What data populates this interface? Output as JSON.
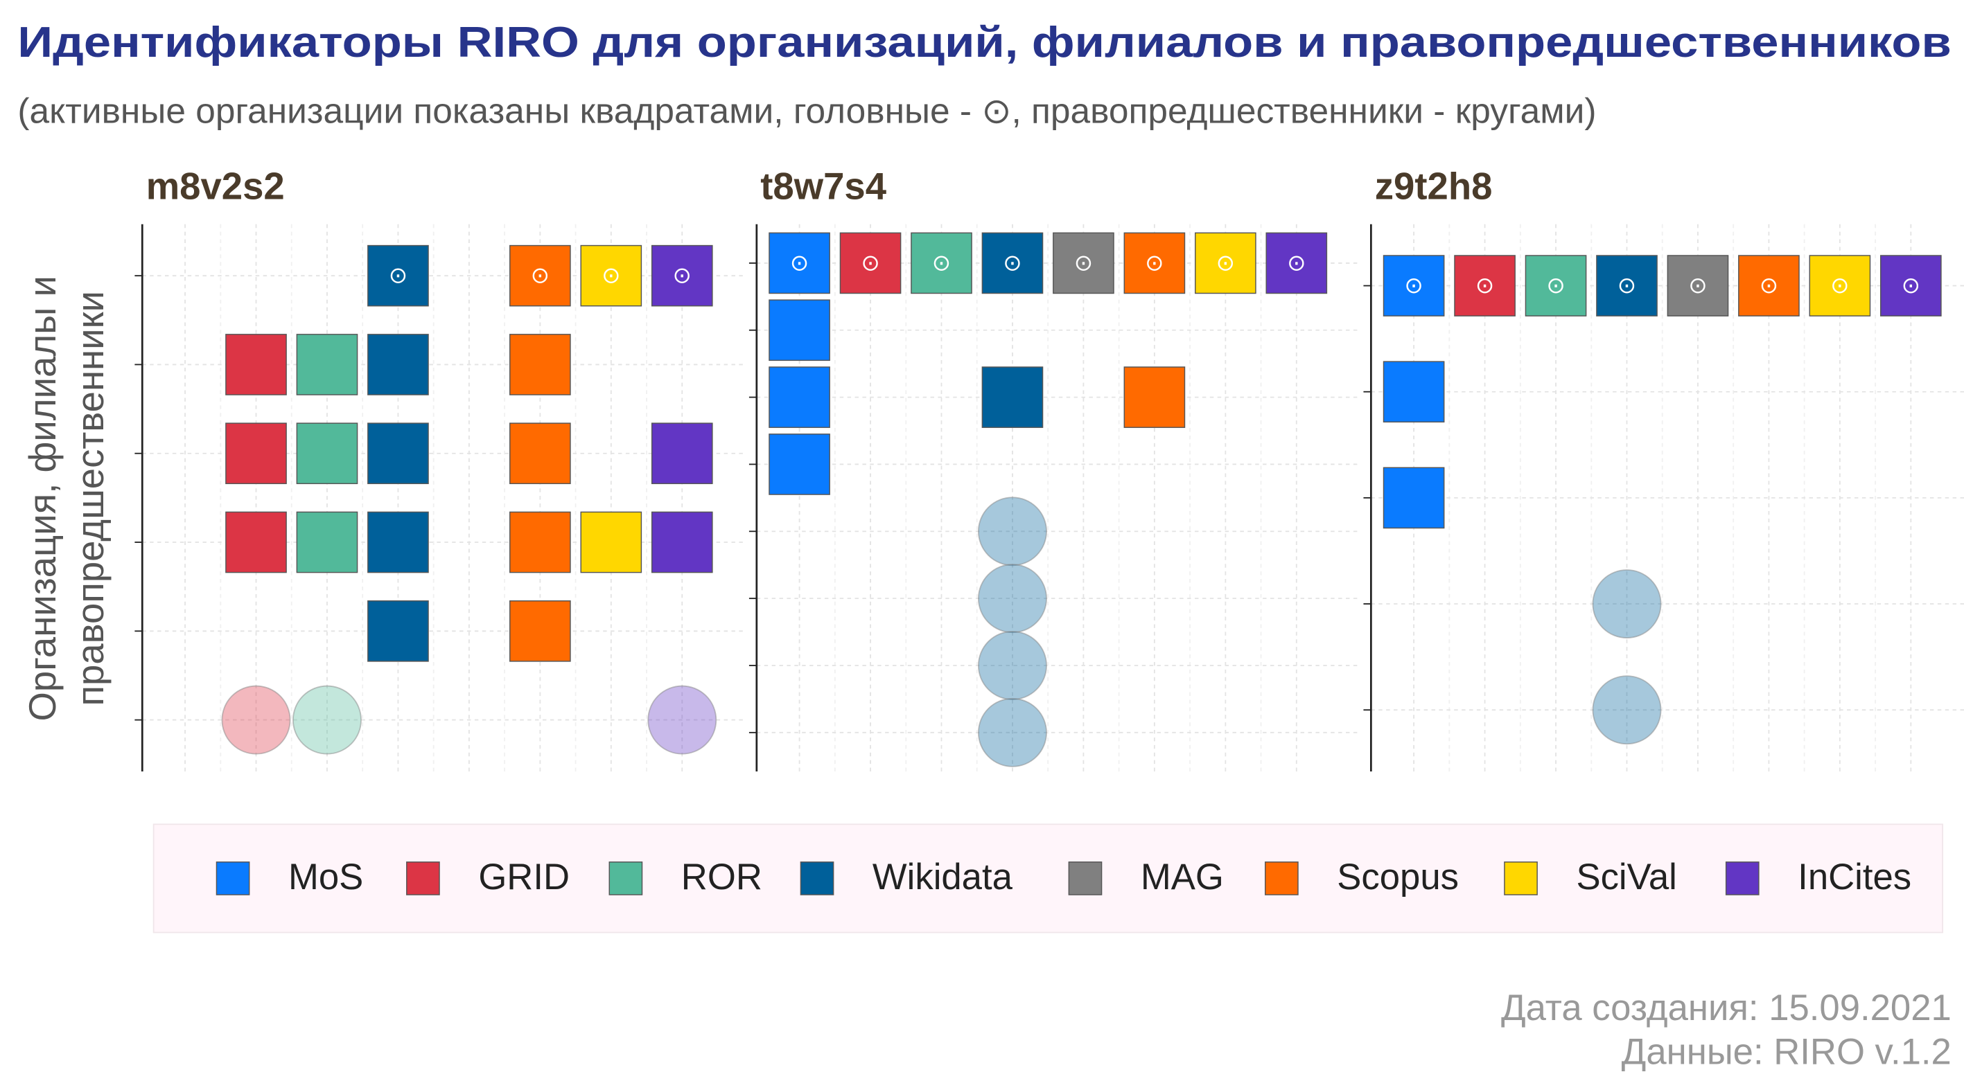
{
  "chart_data": {
    "type": "tile",
    "title": "Идентификаторы RIRO для организаций, филиалов и правопредшественников",
    "subtitle": "(активные организации показаны квадратами, головные - ⊙, правопредшественники - кругами)",
    "y_label": [
      "Организация, филиалы и",
      "правопредшественники"
    ],
    "head_symbol": "⊙",
    "circle_opacity": 0.35,
    "grid": true,
    "legend_position": "bottom",
    "series": [
      {
        "name": "MoS",
        "color": "#0a7bff"
      },
      {
        "name": "GRID",
        "color": "#dc3545"
      },
      {
        "name": "ROR",
        "color": "#52b99a"
      },
      {
        "name": "Wikidata",
        "color": "#00609a"
      },
      {
        "name": "MAG",
        "color": "#808080"
      },
      {
        "name": "Scopus",
        "color": "#ff6a00"
      },
      {
        "name": "SciVal",
        "color": "#ffd700"
      },
      {
        "name": "InCites",
        "color": "#6236c4"
      }
    ],
    "panels": [
      {
        "name": "m8v2s2",
        "rows": [
          [
            null,
            null,
            null,
            "head",
            null,
            "head",
            "head",
            "head"
          ],
          [
            null,
            "square",
            "square",
            "square",
            null,
            "square",
            null,
            null
          ],
          [
            null,
            "square",
            "square",
            "square",
            null,
            "square",
            null,
            "square"
          ],
          [
            null,
            "square",
            "square",
            "square",
            null,
            "square",
            "square",
            "square"
          ],
          [
            null,
            null,
            null,
            "square",
            null,
            "square",
            null,
            null
          ],
          [
            null,
            "circle",
            "circle",
            null,
            null,
            null,
            null,
            "circle"
          ]
        ]
      },
      {
        "name": "t8w7s4",
        "rows": [
          [
            "head",
            "head",
            "head",
            "head",
            "head",
            "head",
            "head",
            "head"
          ],
          [
            "square",
            null,
            null,
            null,
            null,
            null,
            null,
            null
          ],
          [
            "square",
            null,
            null,
            "square",
            null,
            "square",
            null,
            null
          ],
          [
            "square",
            null,
            null,
            null,
            null,
            null,
            null,
            null
          ],
          [
            null,
            null,
            null,
            "circle",
            null,
            null,
            null,
            null
          ],
          [
            null,
            null,
            null,
            "circle",
            null,
            null,
            null,
            null
          ],
          [
            null,
            null,
            null,
            "circle",
            null,
            null,
            null,
            null
          ],
          [
            null,
            null,
            null,
            "circle",
            null,
            null,
            null,
            null
          ]
        ]
      },
      {
        "name": "z9t2h8",
        "rows": [
          [
            "head",
            "head",
            "head",
            "head",
            "head",
            "head",
            "head",
            "head"
          ],
          [
            "square",
            null,
            null,
            null,
            null,
            null,
            null,
            null
          ],
          [
            "square",
            null,
            null,
            null,
            null,
            null,
            null,
            null
          ],
          [
            null,
            null,
            null,
            "circle",
            null,
            null,
            null,
            null
          ],
          [
            null,
            null,
            null,
            "circle",
            null,
            null,
            null,
            null
          ]
        ]
      }
    ],
    "footer": [
      "Дата создания: 15.09.2021",
      "Данные: RIRO v.1.2"
    ]
  }
}
